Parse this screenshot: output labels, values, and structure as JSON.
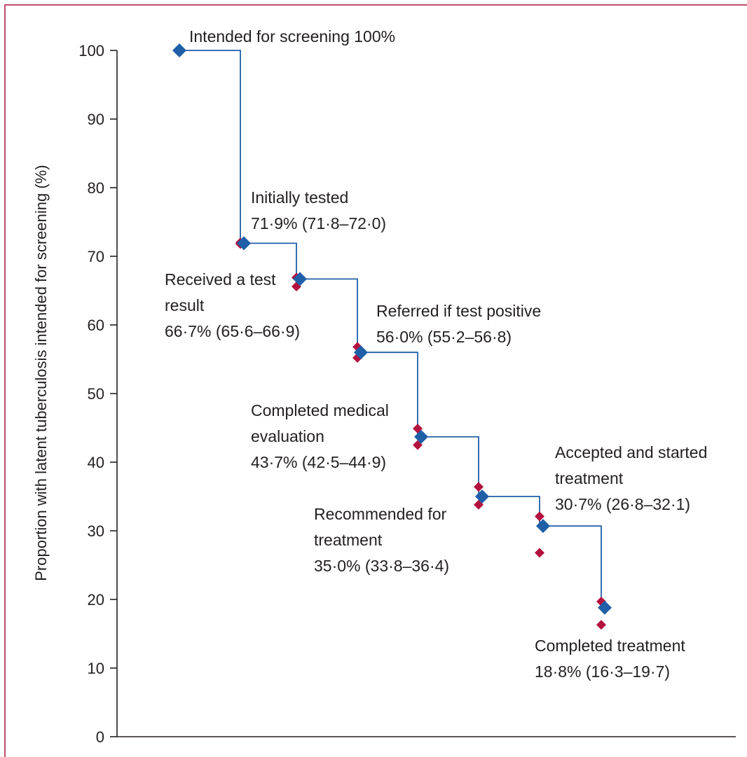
{
  "chart_data": {
    "type": "line",
    "title": "",
    "xlabel": "",
    "ylabel": "Proportion with latent tuberculosis intended for screening (%)",
    "ylim": [
      0,
      100
    ],
    "yticks": [
      "0",
      "10",
      "20",
      "30",
      "40",
      "50",
      "60",
      "70",
      "80",
      "90",
      "100"
    ],
    "grid": false,
    "legend": "none",
    "colors": {
      "point": "#1f5fa8",
      "ci_marker": "#b3123f",
      "step_line": "#1f5fa8",
      "frame": "#c0506e"
    },
    "stages": [
      {
        "label_lines": [
          "Intended for screening 100%"
        ],
        "value": 100,
        "ci_low": null,
        "ci_high": null
      },
      {
        "label_lines": [
          "Initially tested",
          "71·9% (71·8–72·0)"
        ],
        "value": 71.9,
        "ci_low": 71.8,
        "ci_high": 72.0
      },
      {
        "label_lines": [
          "Received a test",
          "result",
          "66·7% (65·6–66·9)"
        ],
        "value": 66.7,
        "ci_low": 65.6,
        "ci_high": 66.9
      },
      {
        "label_lines": [
          "Referred if test positive",
          "56·0% (55·2–56·8)"
        ],
        "value": 56.0,
        "ci_low": 55.2,
        "ci_high": 56.8
      },
      {
        "label_lines": [
          "Completed medical",
          "evaluation",
          "43·7% (42·5–44·9)"
        ],
        "value": 43.7,
        "ci_low": 42.5,
        "ci_high": 44.9
      },
      {
        "label_lines": [
          "Recommended for",
          "treatment",
          "35·0% (33·8–36·4)"
        ],
        "value": 35.0,
        "ci_low": 33.8,
        "ci_high": 36.4
      },
      {
        "label_lines": [
          "Accepted and started",
          "treatment",
          "30·7% (26·8–32·1)"
        ],
        "value": 30.7,
        "ci_low": 26.8,
        "ci_high": 32.1
      },
      {
        "label_lines": [
          "Completed treatment",
          "18·8% (16·3–19·7)"
        ],
        "value": 18.8,
        "ci_low": 16.3,
        "ci_high": 19.7
      }
    ]
  }
}
